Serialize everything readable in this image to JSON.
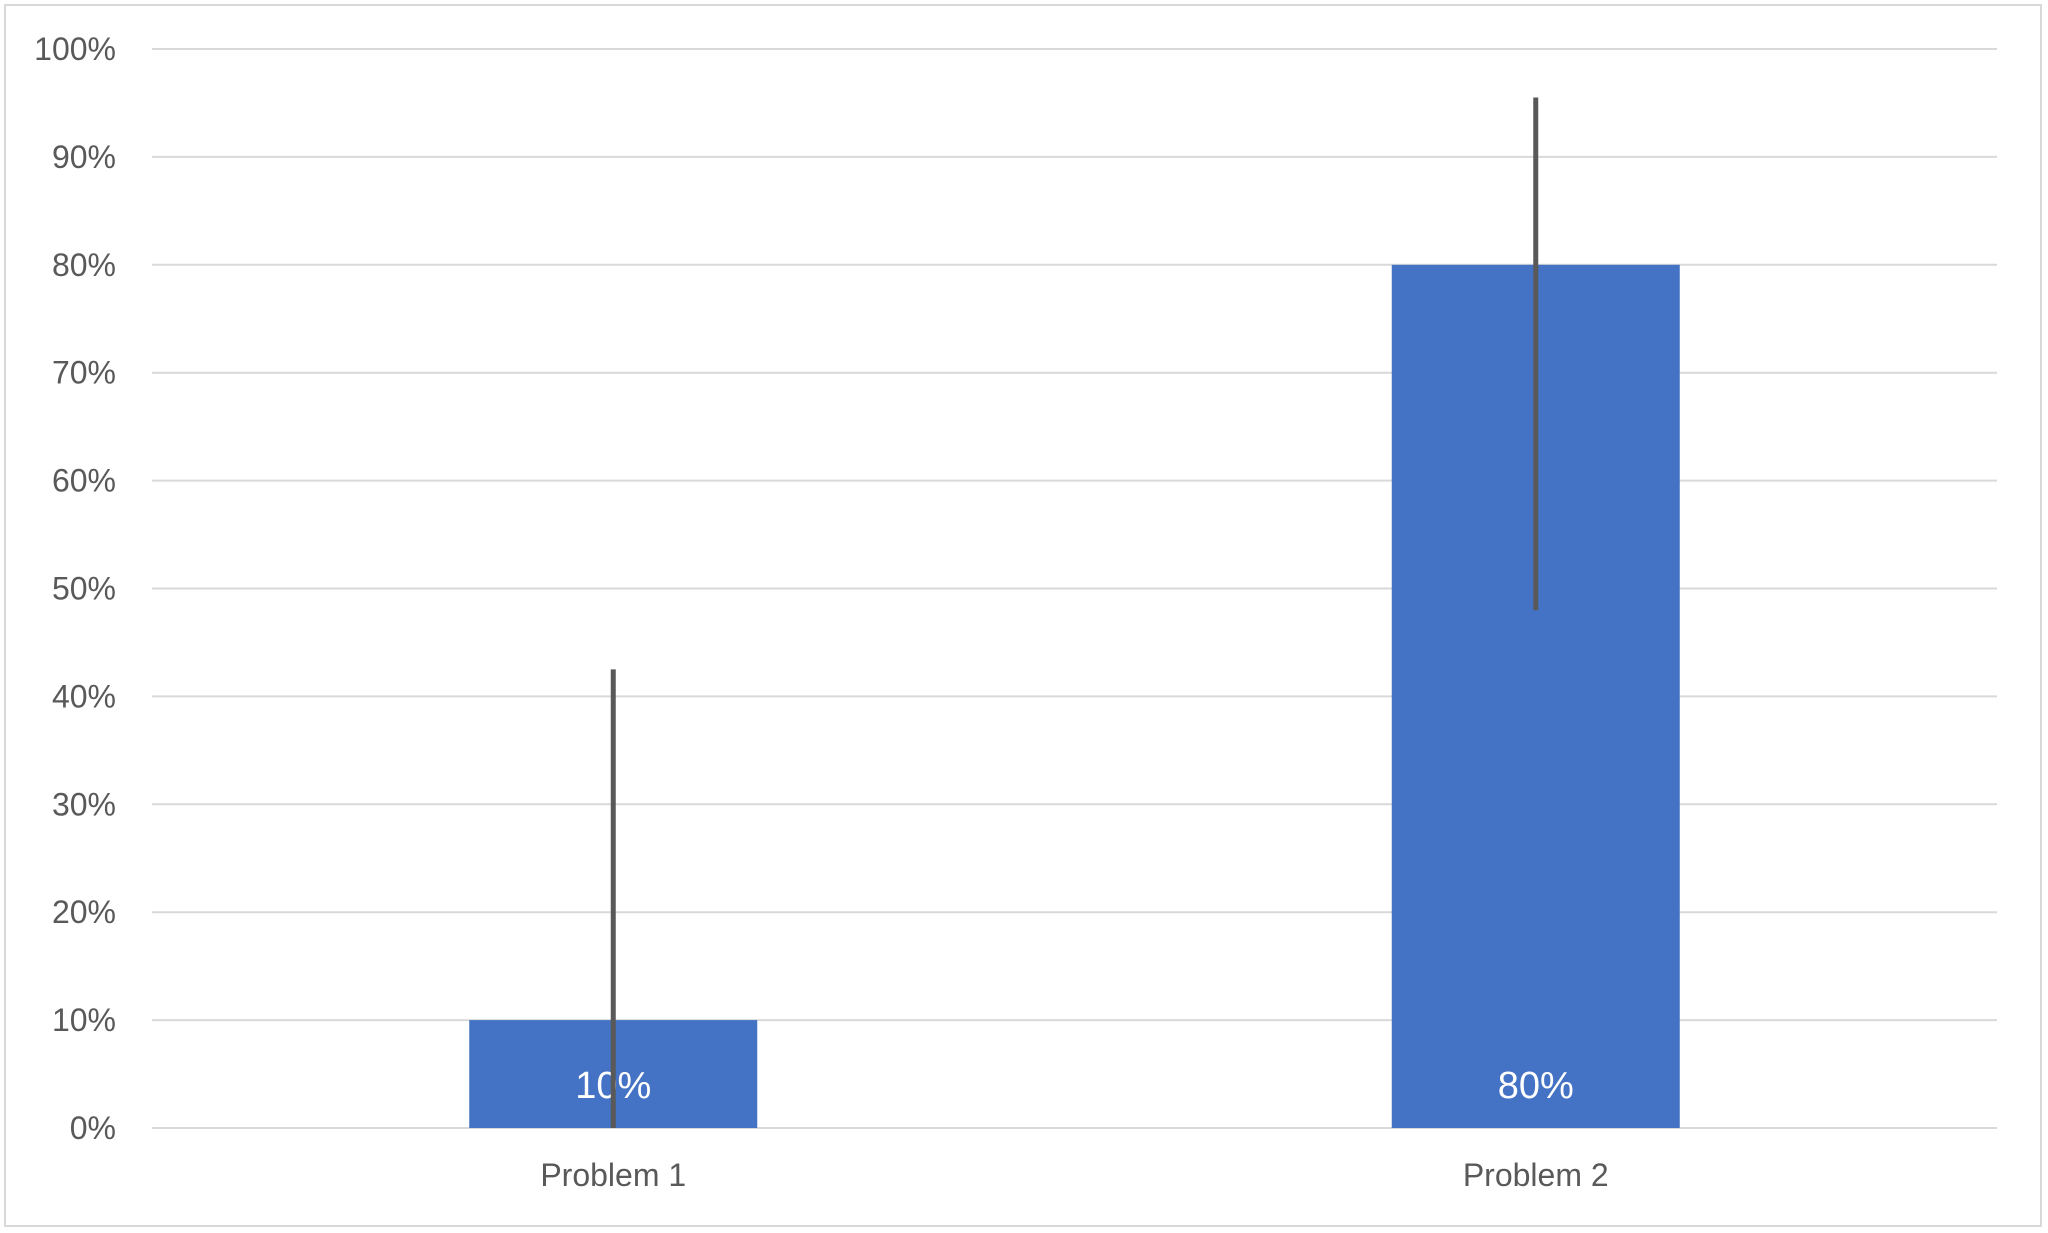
{
  "chart_data": {
    "type": "bar",
    "title": "",
    "xlabel": "",
    "ylabel": "",
    "categories": [
      "Problem 1",
      "Problem 2"
    ],
    "values": [
      10,
      80
    ],
    "data_labels": [
      "10%",
      "80%"
    ],
    "error_bars": [
      {
        "low": 0,
        "high": 42.5
      },
      {
        "low": 48,
        "high": 95.5
      }
    ],
    "ylim": [
      0,
      100
    ],
    "yticks": [
      0,
      10,
      20,
      30,
      40,
      50,
      60,
      70,
      80,
      90,
      100
    ],
    "ytick_labels": [
      "0%",
      "10%",
      "20%",
      "30%",
      "40%",
      "50%",
      "60%",
      "70%",
      "80%",
      "90%",
      "100%"
    ],
    "grid": true,
    "legend": "none",
    "colors": {
      "bar": "#4472c4",
      "error_bar": "#595959",
      "grid": "#d9d9d9",
      "tick_text": "#595959",
      "data_label_text": "#ffffff"
    }
  }
}
